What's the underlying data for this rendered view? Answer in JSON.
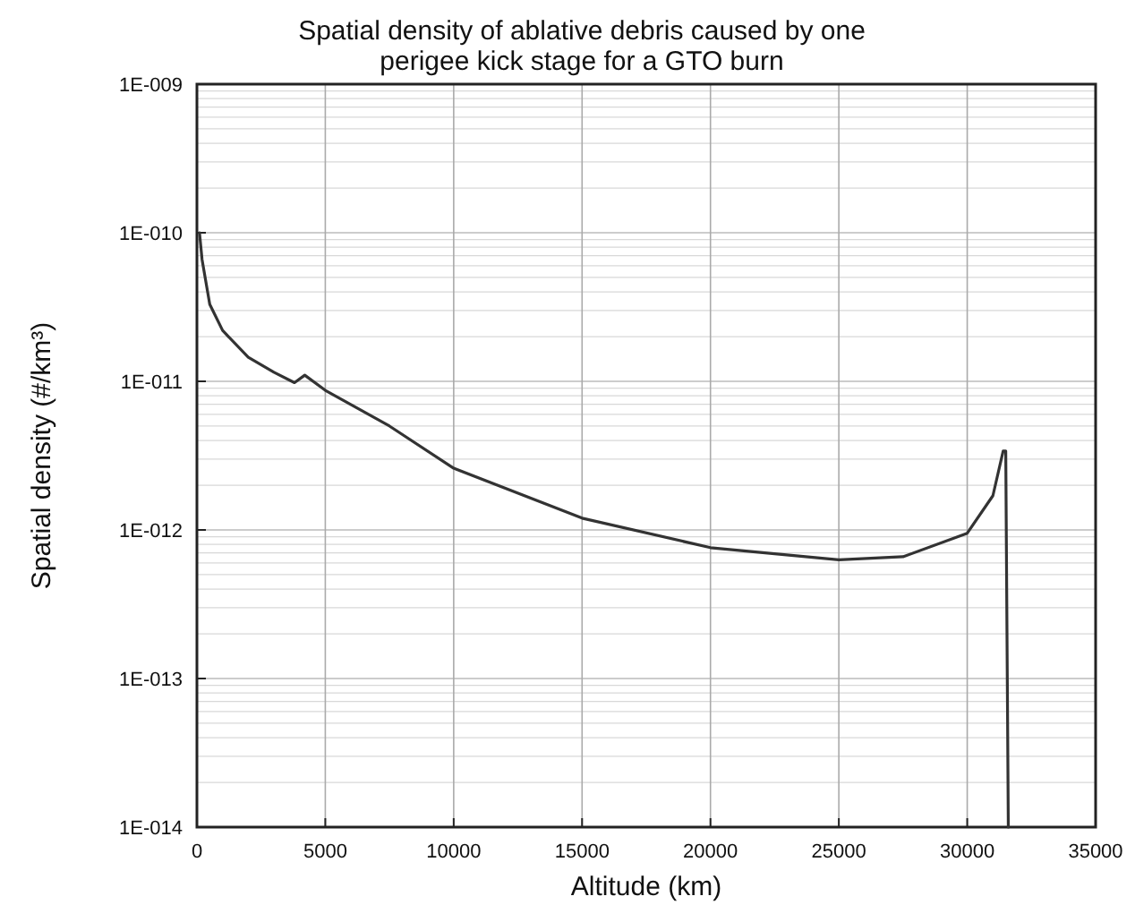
{
  "chart_data": {
    "type": "line",
    "title": "Spatial density of ablative debris caused by one\nperigee kick stage for a GTO burn",
    "xlabel": "Altitude (km)",
    "ylabel": "Spatial density (#/km³)",
    "log": "y",
    "grid": true,
    "color": "#333333",
    "x": [
      100,
      200,
      500,
      1000,
      2000,
      3000,
      3800,
      4200,
      5000,
      7500,
      10000,
      15000,
      20000,
      25000,
      27500,
      30000,
      31000,
      31400,
      31500,
      31600
    ],
    "values": [
      1e-10,
      6.6e-11,
      3.3e-11,
      2.2e-11,
      1.45e-11,
      1.15e-11,
      9.8e-12,
      1.1e-11,
      8.7e-12,
      5e-12,
      2.6e-12,
      1.2e-12,
      7.6e-13,
      6.3e-13,
      6.6e-13,
      9.5e-13,
      1.7e-12,
      3.4e-12,
      3.4e-12,
      1e-14
    ],
    "xlim": [
      0,
      35000
    ],
    "xticks": [
      0,
      5000,
      10000,
      15000,
      20000,
      25000,
      30000,
      35000
    ],
    "ylim": [
      1e-14,
      1e-09
    ],
    "yticks": [
      {
        "value": 1e-14,
        "label": "1E-014"
      },
      {
        "value": 1e-13,
        "label": "1E-013"
      },
      {
        "value": 1e-12,
        "label": "1E-012"
      },
      {
        "value": 1e-11,
        "label": "1E-011"
      },
      {
        "value": 1e-10,
        "label": "1E-010"
      },
      {
        "value": 1e-09,
        "label": "1E-009"
      }
    ]
  }
}
